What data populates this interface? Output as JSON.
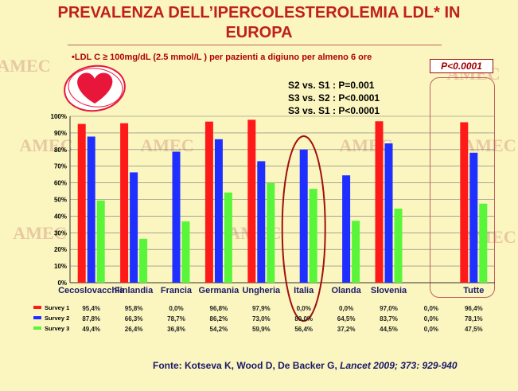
{
  "slide": {
    "title_line1": "PREVALENZA DELL’IPERCOLESTEROLEMIA LDL* IN",
    "title_line2": "EUROPA",
    "subtitle": "•LDL C ≥ 100mg/dL (2.5 mmol/L ) per pazienti a digiuno per almeno 6 ore",
    "p_value": "P<0.0001",
    "comparisons": [
      "S2 vs. S1 : P=0.001",
      "S3 vs. S2 : P<0.0001",
      "S3 vs. S1 : P<0.0001"
    ],
    "source_prefix": "Fonte: Kotseva K, Wood D, De Backer G, ",
    "source_journal": "Lancet 2009; 373: 929-940",
    "watermark": "AMEC"
  },
  "colors": {
    "survey1": "#ff1a1a",
    "survey2": "#1f2fff",
    "survey3": "#59f53a",
    "heart": "#e8163a"
  },
  "chart_data": {
    "type": "bar",
    "categories": [
      "Cecoslovacchia",
      "Finlandia",
      "Francia",
      "Germania",
      "Ungheria",
      "Italia",
      "Olanda",
      "Slovenia",
      "",
      "Tutte"
    ],
    "y_ticks": [
      "0%",
      "10%",
      "20%",
      "30%",
      "40%",
      "50%",
      "60%",
      "70%",
      "80%",
      "90%",
      "100%"
    ],
    "ylim": [
      0,
      100
    ],
    "grid": true,
    "series": [
      {
        "name": "Survey 1",
        "values": [
          95.4,
          95.8,
          0.0,
          96.8,
          97.9,
          0.0,
          0.0,
          97.0,
          0.0,
          96.4
        ],
        "labels": [
          "95,4%",
          "95,8%",
          "0,0%",
          "96,8%",
          "97,9%",
          "0,0%",
          "0,0%",
          "97,0%",
          "0,0%",
          "96,4%"
        ]
      },
      {
        "name": "Survey 2",
        "values": [
          87.8,
          66.3,
          78.7,
          86.2,
          73.0,
          80.0,
          64.5,
          83.7,
          0.0,
          78.1
        ],
        "labels": [
          "87,8%",
          "66,3%",
          "78,7%",
          "86,2%",
          "73,0%",
          "80,0%",
          "64,5%",
          "83,7%",
          "0,0%",
          "78,1%"
        ]
      },
      {
        "name": "Survey 3",
        "values": [
          49.4,
          26.4,
          36.8,
          54.2,
          59.9,
          56.4,
          37.2,
          44.5,
          0.0,
          47.5
        ],
        "labels": [
          "49,4%",
          "26,4%",
          "36,8%",
          "54,2%",
          "59,9%",
          "56,4%",
          "37,2%",
          "44,5%",
          "0,0%",
          "47,5%"
        ]
      }
    ]
  }
}
